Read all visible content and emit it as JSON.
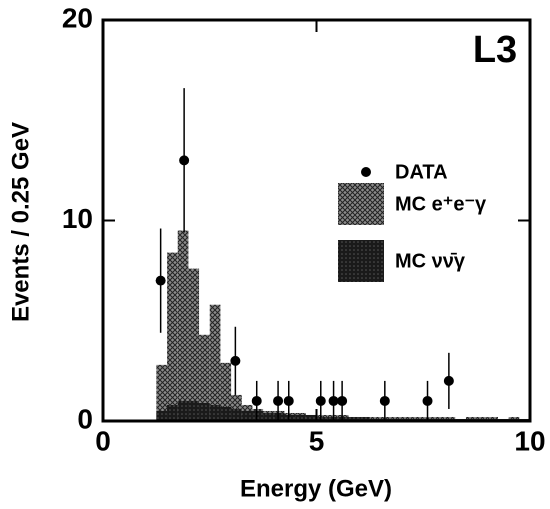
{
  "chart_data": {
    "type": "histogram",
    "ylabel": "Events / 0.25 GeV",
    "xlabel": "Energy (GeV)",
    "annotation": "L3",
    "xlim": [
      0,
      10
    ],
    "ylim": [
      0,
      20
    ],
    "xticks": [
      0,
      5,
      10
    ],
    "yticks": [
      0,
      10,
      20
    ],
    "bins": [
      1.25,
      1.5,
      1.75,
      2.0,
      2.25,
      2.5,
      2.75,
      3.0,
      3.25,
      3.5,
      3.75,
      4.0,
      4.25,
      4.5,
      4.75,
      5.0,
      5.25,
      5.5,
      5.75,
      6.0,
      6.25,
      6.5,
      6.75,
      7.0,
      7.25,
      7.5,
      7.75,
      8.0,
      8.25,
      8.5,
      8.75,
      9.0,
      9.25,
      9.5,
      9.75,
      10.0
    ],
    "series": [
      {
        "name": "MC e⁺e⁻γ",
        "color": "#6a6a6a",
        "values": [
          2.8,
          8.4,
          9.5,
          7.6,
          4.3,
          5.8,
          2.9,
          1.3,
          0.8,
          0.6,
          0.5,
          0.5,
          0.4,
          0.4,
          0.3,
          0.3,
          0.3,
          0.3,
          0.2,
          0.2,
          0.2,
          0.2,
          0.2,
          0.2,
          0.2,
          0.2,
          0.2,
          0.2,
          0.1,
          0.2,
          0.2,
          0.2,
          0.1,
          0.2,
          0.1
        ]
      },
      {
        "name": "MC νν̄γ",
        "color": "#1a1a1a",
        "values": [
          0.5,
          0.8,
          1.0,
          1.0,
          0.9,
          0.8,
          0.7,
          0.6,
          0.5,
          0.5,
          0.4,
          0.4,
          0.3,
          0.3,
          0.3,
          0.2,
          0.2,
          0.2,
          0.2,
          0.2,
          0.1,
          0.1,
          0.1,
          0.1,
          0.1,
          0.1,
          0.1,
          0.1,
          0.1,
          0.1,
          0.1,
          0.1,
          0.1,
          0.1,
          0.1
        ]
      }
    ],
    "points": {
      "name": "DATA",
      "color": "#000000",
      "x": [
        1.35,
        1.9,
        3.1,
        3.6,
        4.1,
        4.35,
        5.1,
        5.4,
        5.6,
        6.6,
        7.6,
        8.1
      ],
      "values": [
        7,
        13,
        3,
        1,
        1,
        1,
        1,
        1,
        1,
        1,
        1,
        2
      ],
      "errors": [
        2.6,
        3.6,
        1.7,
        1,
        1,
        1,
        1,
        1,
        1,
        1,
        1,
        1.4
      ]
    }
  }
}
